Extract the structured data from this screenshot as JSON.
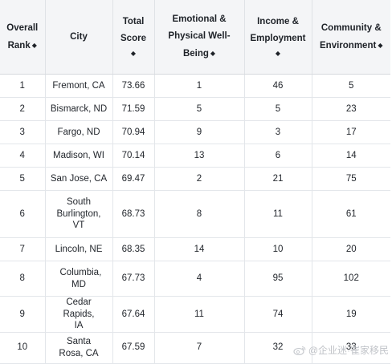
{
  "table": {
    "columns": [
      {
        "lines": [
          "Overall",
          "Rank"
        ],
        "sortable": true,
        "icon": "sort-icon"
      },
      {
        "lines": [
          "City"
        ],
        "sortable": false
      },
      {
        "lines": [
          "Total",
          "Score"
        ],
        "sortable": true,
        "icon": "sort-icon",
        "icon_own_line": true
      },
      {
        "lines": [
          "Emotional &",
          "Physical Well-",
          "Being"
        ],
        "sortable": true,
        "icon": "sort-icon"
      },
      {
        "lines": [
          "Income &",
          "Employment"
        ],
        "sortable": true,
        "icon": "sort-icon",
        "icon_own_line": true
      },
      {
        "lines": [
          "Community &",
          "Environment"
        ],
        "sortable": true,
        "icon": "sort-icon"
      }
    ],
    "sort_glyph": "◆",
    "rows": [
      {
        "rank": "1",
        "city": "Fremont, CA",
        "score": "73.66",
        "wellbeing": "1",
        "income": "46",
        "community": "5"
      },
      {
        "rank": "2",
        "city": "Bismarck, ND",
        "score": "71.59",
        "wellbeing": "5",
        "income": "5",
        "community": "23"
      },
      {
        "rank": "3",
        "city": "Fargo, ND",
        "score": "70.94",
        "wellbeing": "9",
        "income": "3",
        "community": "17"
      },
      {
        "rank": "4",
        "city": "Madison, WI",
        "score": "70.14",
        "wellbeing": "13",
        "income": "6",
        "community": "14"
      },
      {
        "rank": "5",
        "city": "San Jose, CA",
        "score": "69.47",
        "wellbeing": "2",
        "income": "21",
        "community": "75"
      },
      {
        "rank": "6",
        "city": "South Burlington, VT",
        "score": "68.73",
        "wellbeing": "8",
        "income": "11",
        "community": "61"
      },
      {
        "rank": "7",
        "city": "Lincoln, NE",
        "score": "68.35",
        "wellbeing": "14",
        "income": "10",
        "community": "20"
      },
      {
        "rank": "8",
        "city": "Columbia, MD",
        "score": "67.73",
        "wellbeing": "4",
        "income": "95",
        "community": "102"
      },
      {
        "rank": "9",
        "city": "Cedar Rapids, IA",
        "score": "67.64",
        "wellbeing": "11",
        "income": "74",
        "community": "19"
      },
      {
        "rank": "10",
        "city": "Santa Rosa, CA",
        "score": "67.59",
        "wellbeing": "7",
        "income": "32",
        "community": "33"
      }
    ]
  },
  "watermark": {
    "text": "@企业迷·崔家移民",
    "icon": "weibo-icon"
  }
}
